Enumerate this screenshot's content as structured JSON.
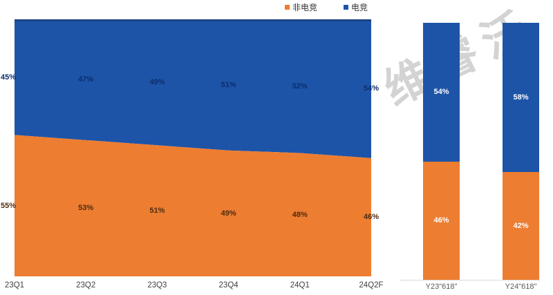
{
  "watermark": {
    "text": "维睿沃"
  },
  "legend": {
    "items": [
      {
        "label": "非电竞",
        "color": "#ED7D31"
      },
      {
        "label": "电竞",
        "color": "#1D54A8"
      }
    ]
  },
  "colors": {
    "orange": "#ED7D31",
    "blue": "#1D54A8",
    "blue_top_stroke": "#14407E",
    "label_on_orange": "#4E2A10",
    "label_on_blue": "#0B2D6B",
    "axis_text": "#404040",
    "bar_axis_text": "#595959",
    "axis_line": "#D9D9D9",
    "watermark": "#D3D3D3"
  },
  "chart_data": [
    {
      "type": "area",
      "subtype": "percent-stacked",
      "title": "",
      "categories": [
        "23Q1",
        "23Q2",
        "23Q3",
        "23Q4",
        "24Q1",
        "24Q2F"
      ],
      "series": [
        {
          "name": "非电竞",
          "color": "#ED7D31",
          "label_color": "#4E2A10",
          "values": [
            55,
            53,
            51,
            49,
            48,
            46
          ]
        },
        {
          "name": "电竞",
          "color": "#1D54A8",
          "label_color": "#0B2D6B",
          "values": [
            45,
            47,
            49,
            51,
            52,
            54
          ]
        }
      ],
      "ylim": [
        0,
        100
      ],
      "grid": false,
      "data_labels": "percent",
      "legend_position": "top"
    },
    {
      "type": "bar",
      "subtype": "percent-stacked",
      "title": "",
      "categories": [
        "Y23\"618\"",
        "Y24\"618\""
      ],
      "series": [
        {
          "name": "非电竞",
          "color": "#ED7D31",
          "label_color": "#FFFFFF",
          "values": [
            46,
            42
          ]
        },
        {
          "name": "电竞",
          "color": "#1D54A8",
          "label_color": "#FFFFFF",
          "values": [
            54,
            58
          ]
        }
      ],
      "ylim": [
        0,
        100
      ],
      "grid": false,
      "data_labels": "percent"
    }
  ]
}
